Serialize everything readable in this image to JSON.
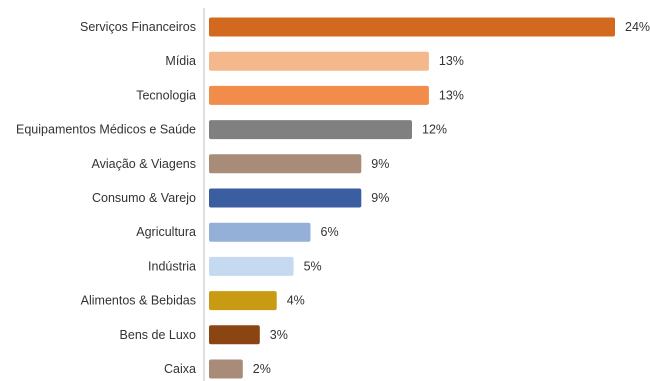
{
  "chart_data": {
    "type": "bar",
    "orientation": "horizontal",
    "title": "",
    "xlabel": "",
    "ylabel": "",
    "xlim": [
      0,
      24
    ],
    "grid": false,
    "legend": "none",
    "value_format": "percent",
    "categories": [
      "Serviços Financeiros",
      "Mídia",
      "Tecnologia",
      "Equipamentos Médicos e Saúde",
      "Aviação & Viagens",
      "Consumo & Varejo",
      "Agricultura",
      "Indústria",
      "Alimentos & Bebidas",
      "Bens de Luxo",
      "Caixa"
    ],
    "values": [
      24,
      13,
      13,
      12,
      9,
      9,
      6,
      5,
      4,
      3,
      2
    ],
    "value_labels": [
      "24%",
      "13%",
      "13%",
      "12%",
      "9%",
      "9%",
      "6%",
      "5%",
      "4%",
      "3%",
      "2%"
    ],
    "colors": [
      "#d2691e",
      "#f5b78c",
      "#f28c4a",
      "#808080",
      "#a88b78",
      "#3a5ea0",
      "#94afd8",
      "#c5daf0",
      "#c89b12",
      "#8b4513",
      "#a88b78"
    ]
  }
}
